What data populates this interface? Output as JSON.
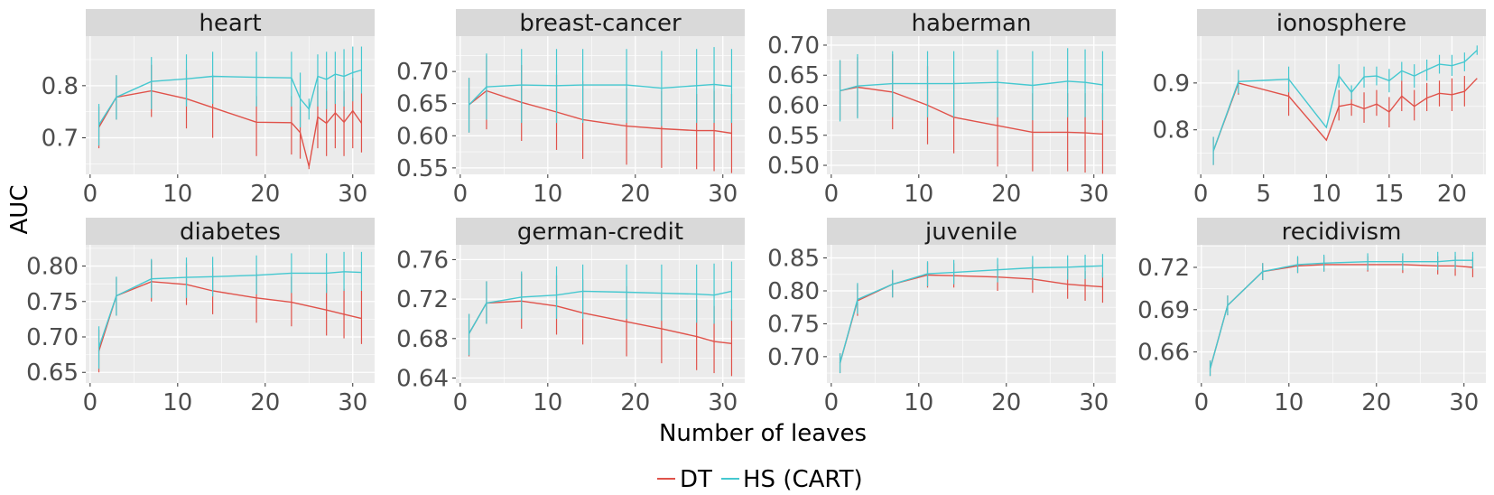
{
  "figure": {
    "xlabel": "Number of leaves",
    "ylabel": "AUC"
  },
  "legend": {
    "items": [
      {
        "label": "DT",
        "color": "#e0524a"
      },
      {
        "label": "HS (CART)",
        "color": "#45c8d0"
      }
    ]
  },
  "colors": {
    "panel_bg": "#ebebeb",
    "strip_bg": "#d9d9d9",
    "grid_major": "#ffffff",
    "DT": "#e0524a",
    "HS": "#45c8d0"
  },
  "chart_data": [
    {
      "type": "line",
      "title": "heart",
      "xlim": [
        -0.5,
        32.5
      ],
      "ylim": [
        0.63,
        0.895
      ],
      "xticks": [
        0,
        10,
        20,
        30
      ],
      "yticks": [
        0.7,
        0.8
      ],
      "ytick_labels": [
        "0.7",
        "0.8"
      ],
      "x": [
        1,
        3,
        7,
        11,
        14,
        19,
        23,
        24,
        25,
        26,
        27,
        28,
        29,
        30,
        31
      ],
      "series": [
        {
          "name": "DT",
          "values": [
            0.72,
            0.778,
            0.79,
            0.775,
            0.758,
            0.73,
            0.729,
            0.71,
            0.645,
            0.74,
            0.728,
            0.748,
            0.73,
            0.752,
            0.728
          ],
          "err_low": [
            0.68,
            0.735,
            0.74,
            0.718,
            0.7,
            0.665,
            0.668,
            0.66,
            0.64,
            0.68,
            0.665,
            0.68,
            0.665,
            0.68,
            0.672
          ],
          "err_high": [
            0.76,
            0.82,
            0.84,
            0.83,
            0.82,
            0.78,
            0.78,
            0.76,
            0.65,
            0.8,
            0.79,
            0.81,
            0.79,
            0.815,
            0.785
          ]
        },
        {
          "name": "HS (CART)",
          "values": [
            0.725,
            0.778,
            0.808,
            0.813,
            0.818,
            0.816,
            0.815,
            0.775,
            0.755,
            0.818,
            0.812,
            0.822,
            0.818,
            0.825,
            0.83
          ],
          "err_low": [
            0.685,
            0.735,
            0.755,
            0.76,
            0.765,
            0.76,
            0.76,
            0.72,
            0.735,
            0.76,
            0.755,
            0.765,
            0.76,
            0.77,
            0.785
          ],
          "err_high": [
            0.765,
            0.82,
            0.855,
            0.86,
            0.865,
            0.865,
            0.865,
            0.825,
            0.775,
            0.86,
            0.865,
            0.865,
            0.87,
            0.875,
            0.875
          ]
        }
      ]
    },
    {
      "type": "line",
      "title": "breast-cancer",
      "xlim": [
        -0.5,
        32.5
      ],
      "ylim": [
        0.54,
        0.755
      ],
      "xticks": [
        0,
        10,
        20,
        30
      ],
      "yticks": [
        0.55,
        0.6,
        0.65,
        0.7
      ],
      "ytick_labels": [
        "0.55",
        "0.60",
        "0.65",
        "0.70"
      ],
      "x": [
        1,
        3,
        7,
        11,
        14,
        19,
        23,
        27,
        29,
        31
      ],
      "series": [
        {
          "name": "DT",
          "values": [
            0.648,
            0.67,
            0.652,
            0.637,
            0.625,
            0.615,
            0.611,
            0.608,
            0.608,
            0.604
          ],
          "err_low": [
            0.605,
            0.61,
            0.592,
            0.578,
            0.564,
            0.555,
            0.55,
            0.548,
            0.545,
            0.542
          ],
          "err_high": [
            0.69,
            0.725,
            0.71,
            0.695,
            0.685,
            0.675,
            0.67,
            0.665,
            0.67,
            0.665
          ]
        },
        {
          "name": "HS (CART)",
          "values": [
            0.648,
            0.676,
            0.679,
            0.678,
            0.679,
            0.679,
            0.674,
            0.678,
            0.68,
            0.677
          ],
          "err_low": [
            0.605,
            0.625,
            0.62,
            0.62,
            0.62,
            0.62,
            0.615,
            0.62,
            0.62,
            0.62
          ],
          "err_high": [
            0.69,
            0.728,
            0.735,
            0.735,
            0.735,
            0.735,
            0.732,
            0.735,
            0.738,
            0.735
          ]
        }
      ]
    },
    {
      "type": "line",
      "title": "haberman",
      "xlim": [
        -0.5,
        32.5
      ],
      "ylim": [
        0.485,
        0.715
      ],
      "xticks": [
        0,
        10,
        20,
        30
      ],
      "yticks": [
        0.5,
        0.55,
        0.6,
        0.65,
        0.7
      ],
      "ytick_labels": [
        "0.50",
        "0.55",
        "0.60",
        "0.65",
        "0.70"
      ],
      "x": [
        1,
        3,
        7,
        11,
        14,
        19,
        23,
        27,
        29,
        31
      ],
      "series": [
        {
          "name": "DT",
          "values": [
            0.624,
            0.63,
            0.622,
            0.6,
            0.58,
            0.566,
            0.555,
            0.555,
            0.554,
            0.552
          ],
          "err_low": [
            0.575,
            0.58,
            0.56,
            0.535,
            0.52,
            0.498,
            0.49,
            0.49,
            0.488,
            0.486
          ],
          "err_high": [
            0.675,
            0.68,
            0.685,
            0.665,
            0.64,
            0.63,
            0.62,
            0.62,
            0.62,
            0.62
          ]
        },
        {
          "name": "HS (CART)",
          "values": [
            0.624,
            0.632,
            0.636,
            0.636,
            0.636,
            0.638,
            0.633,
            0.64,
            0.638,
            0.634
          ],
          "err_low": [
            0.573,
            0.578,
            0.58,
            0.58,
            0.58,
            0.58,
            0.575,
            0.58,
            0.58,
            0.575
          ],
          "err_high": [
            0.675,
            0.685,
            0.69,
            0.69,
            0.69,
            0.692,
            0.69,
            0.695,
            0.693,
            0.69
          ]
        }
      ]
    },
    {
      "type": "line",
      "title": "ionosphere",
      "xlim": [
        -0.3,
        22.7
      ],
      "ylim": [
        0.705,
        1.0
      ],
      "xticks": [
        0,
        5,
        10,
        15,
        20
      ],
      "yticks": [
        0.8,
        0.9
      ],
      "ytick_labels": [
        "0.8",
        "0.9"
      ],
      "x": [
        1,
        3,
        7,
        10,
        11,
        12,
        13,
        14,
        15,
        16,
        17,
        18,
        19,
        20,
        21,
        22
      ],
      "series": [
        {
          "name": "DT",
          "values": [
            0.755,
            0.9,
            0.872,
            0.778,
            0.85,
            0.855,
            0.845,
            0.855,
            0.838,
            0.872,
            0.85,
            0.868,
            0.878,
            0.875,
            0.882,
            0.91
          ],
          "err_low": [
            0.725,
            0.875,
            0.83,
            0.778,
            0.82,
            0.83,
            0.815,
            0.83,
            0.805,
            0.84,
            0.82,
            0.84,
            0.85,
            0.84,
            0.85,
            0.91
          ],
          "err_high": [
            0.785,
            0.925,
            0.912,
            0.778,
            0.885,
            0.885,
            0.88,
            0.885,
            0.87,
            0.905,
            0.885,
            0.9,
            0.905,
            0.91,
            0.915,
            0.91
          ]
        },
        {
          "name": "HS (CART)",
          "values": [
            0.755,
            0.903,
            0.908,
            0.805,
            0.915,
            0.88,
            0.913,
            0.915,
            0.905,
            0.926,
            0.915,
            0.928,
            0.94,
            0.937,
            0.945,
            0.97
          ],
          "err_low": [
            0.725,
            0.878,
            0.88,
            0.805,
            0.89,
            0.865,
            0.89,
            0.895,
            0.88,
            0.905,
            0.89,
            0.905,
            0.92,
            0.915,
            0.925,
            0.96
          ],
          "err_high": [
            0.785,
            0.928,
            0.935,
            0.805,
            0.94,
            0.895,
            0.935,
            0.935,
            0.93,
            0.945,
            0.94,
            0.95,
            0.96,
            0.96,
            0.965,
            0.98
          ]
        }
      ]
    },
    {
      "type": "line",
      "title": "diabetes",
      "xlim": [
        -0.5,
        32.5
      ],
      "ylim": [
        0.635,
        0.83
      ],
      "xticks": [
        0,
        10,
        20,
        30
      ],
      "yticks": [
        0.65,
        0.7,
        0.75,
        0.8
      ],
      "ytick_labels": [
        "0.65",
        "0.70",
        "0.75",
        "0.80"
      ],
      "x": [
        1,
        3,
        7,
        11,
        14,
        19,
        23,
        27,
        29,
        31
      ],
      "series": [
        {
          "name": "DT",
          "values": [
            0.68,
            0.758,
            0.778,
            0.774,
            0.765,
            0.755,
            0.749,
            0.738,
            0.732,
            0.726
          ],
          "err_low": [
            0.65,
            0.73,
            0.75,
            0.745,
            0.732,
            0.72,
            0.715,
            0.702,
            0.698,
            0.69
          ],
          "err_high": [
            0.71,
            0.784,
            0.808,
            0.804,
            0.798,
            0.79,
            0.785,
            0.775,
            0.768,
            0.765
          ]
        },
        {
          "name": "HS (CART)",
          "values": [
            0.685,
            0.758,
            0.782,
            0.784,
            0.785,
            0.787,
            0.79,
            0.79,
            0.792,
            0.791
          ],
          "err_low": [
            0.655,
            0.73,
            0.755,
            0.755,
            0.757,
            0.76,
            0.762,
            0.762,
            0.765,
            0.765
          ],
          "err_high": [
            0.715,
            0.785,
            0.81,
            0.812,
            0.813,
            0.815,
            0.818,
            0.818,
            0.82,
            0.82
          ]
        }
      ]
    },
    {
      "type": "line",
      "title": "german-credit",
      "xlim": [
        -0.5,
        32.5
      ],
      "ylim": [
        0.635,
        0.775
      ],
      "xticks": [
        0,
        10,
        20,
        30
      ],
      "yticks": [
        0.64,
        0.68,
        0.72,
        0.76
      ],
      "ytick_labels": [
        "0.64",
        "0.68",
        "0.72",
        "0.76"
      ],
      "x": [
        1,
        3,
        7,
        11,
        14,
        19,
        23,
        27,
        29,
        31
      ],
      "series": [
        {
          "name": "DT",
          "values": [
            0.685,
            0.716,
            0.718,
            0.713,
            0.706,
            0.697,
            0.69,
            0.682,
            0.677,
            0.675
          ],
          "err_low": [
            0.662,
            0.695,
            0.69,
            0.684,
            0.674,
            0.662,
            0.655,
            0.648,
            0.645,
            0.642
          ],
          "err_high": [
            0.705,
            0.738,
            0.746,
            0.744,
            0.74,
            0.733,
            0.727,
            0.72,
            0.713,
            0.71
          ]
        },
        {
          "name": "HS (CART)",
          "values": [
            0.685,
            0.716,
            0.722,
            0.724,
            0.728,
            0.727,
            0.726,
            0.725,
            0.724,
            0.728
          ],
          "err_low": [
            0.663,
            0.695,
            0.7,
            0.7,
            0.7,
            0.7,
            0.698,
            0.696,
            0.695,
            0.698
          ],
          "err_high": [
            0.705,
            0.738,
            0.748,
            0.753,
            0.755,
            0.755,
            0.755,
            0.755,
            0.756,
            0.758
          ]
        }
      ]
    },
    {
      "type": "line",
      "title": "juvenile",
      "xlim": [
        -0.5,
        32.5
      ],
      "ylim": [
        0.66,
        0.87
      ],
      "xticks": [
        0,
        10,
        20,
        30
      ],
      "yticks": [
        0.7,
        0.75,
        0.8,
        0.85
      ],
      "ytick_labels": [
        "0.70",
        "0.75",
        "0.80",
        "0.85"
      ],
      "x": [
        1,
        3,
        7,
        11,
        14,
        19,
        23,
        27,
        29,
        31
      ],
      "series": [
        {
          "name": "DT",
          "values": [
            0.69,
            0.785,
            0.81,
            0.824,
            0.823,
            0.821,
            0.818,
            0.81,
            0.808,
            0.806
          ],
          "err_low": [
            0.675,
            0.762,
            0.79,
            0.805,
            0.805,
            0.8,
            0.797,
            0.788,
            0.785,
            0.782
          ],
          "err_high": [
            0.705,
            0.81,
            0.83,
            0.843,
            0.842,
            0.84,
            0.84,
            0.833,
            0.83,
            0.828
          ]
        },
        {
          "name": "HS (CART)",
          "values": [
            0.69,
            0.787,
            0.81,
            0.826,
            0.828,
            0.832,
            0.835,
            0.836,
            0.837,
            0.838
          ],
          "err_low": [
            0.675,
            0.765,
            0.79,
            0.807,
            0.81,
            0.813,
            0.816,
            0.817,
            0.818,
            0.82
          ],
          "err_high": [
            0.705,
            0.812,
            0.832,
            0.845,
            0.847,
            0.85,
            0.853,
            0.854,
            0.855,
            0.856
          ]
        }
      ]
    },
    {
      "type": "line",
      "title": "recidivism",
      "xlim": [
        -0.5,
        32.5
      ],
      "ylim": [
        0.638,
        0.736
      ],
      "xticks": [
        0,
        10,
        20,
        30
      ],
      "yticks": [
        0.66,
        0.69,
        0.72
      ],
      "ytick_labels": [
        "0.66",
        "0.69",
        "0.72"
      ],
      "x": [
        1,
        3,
        7,
        11,
        14,
        19,
        23,
        27,
        29,
        31
      ],
      "series": [
        {
          "name": "DT",
          "values": [
            0.648,
            0.693,
            0.717,
            0.721,
            0.722,
            0.722,
            0.722,
            0.721,
            0.721,
            0.72
          ],
          "err_low": [
            0.643,
            0.686,
            0.711,
            0.716,
            0.717,
            0.717,
            0.716,
            0.715,
            0.714,
            0.713
          ],
          "err_high": [
            0.654,
            0.7,
            0.723,
            0.727,
            0.728,
            0.728,
            0.728,
            0.728,
            0.728,
            0.727
          ]
        },
        {
          "name": "HS (CART)",
          "values": [
            0.648,
            0.693,
            0.717,
            0.722,
            0.723,
            0.724,
            0.724,
            0.724,
            0.725,
            0.725
          ],
          "err_low": [
            0.643,
            0.686,
            0.711,
            0.716,
            0.717,
            0.718,
            0.718,
            0.718,
            0.719,
            0.719
          ],
          "err_high": [
            0.654,
            0.7,
            0.723,
            0.728,
            0.729,
            0.73,
            0.73,
            0.731,
            0.731,
            0.731
          ]
        }
      ]
    }
  ]
}
